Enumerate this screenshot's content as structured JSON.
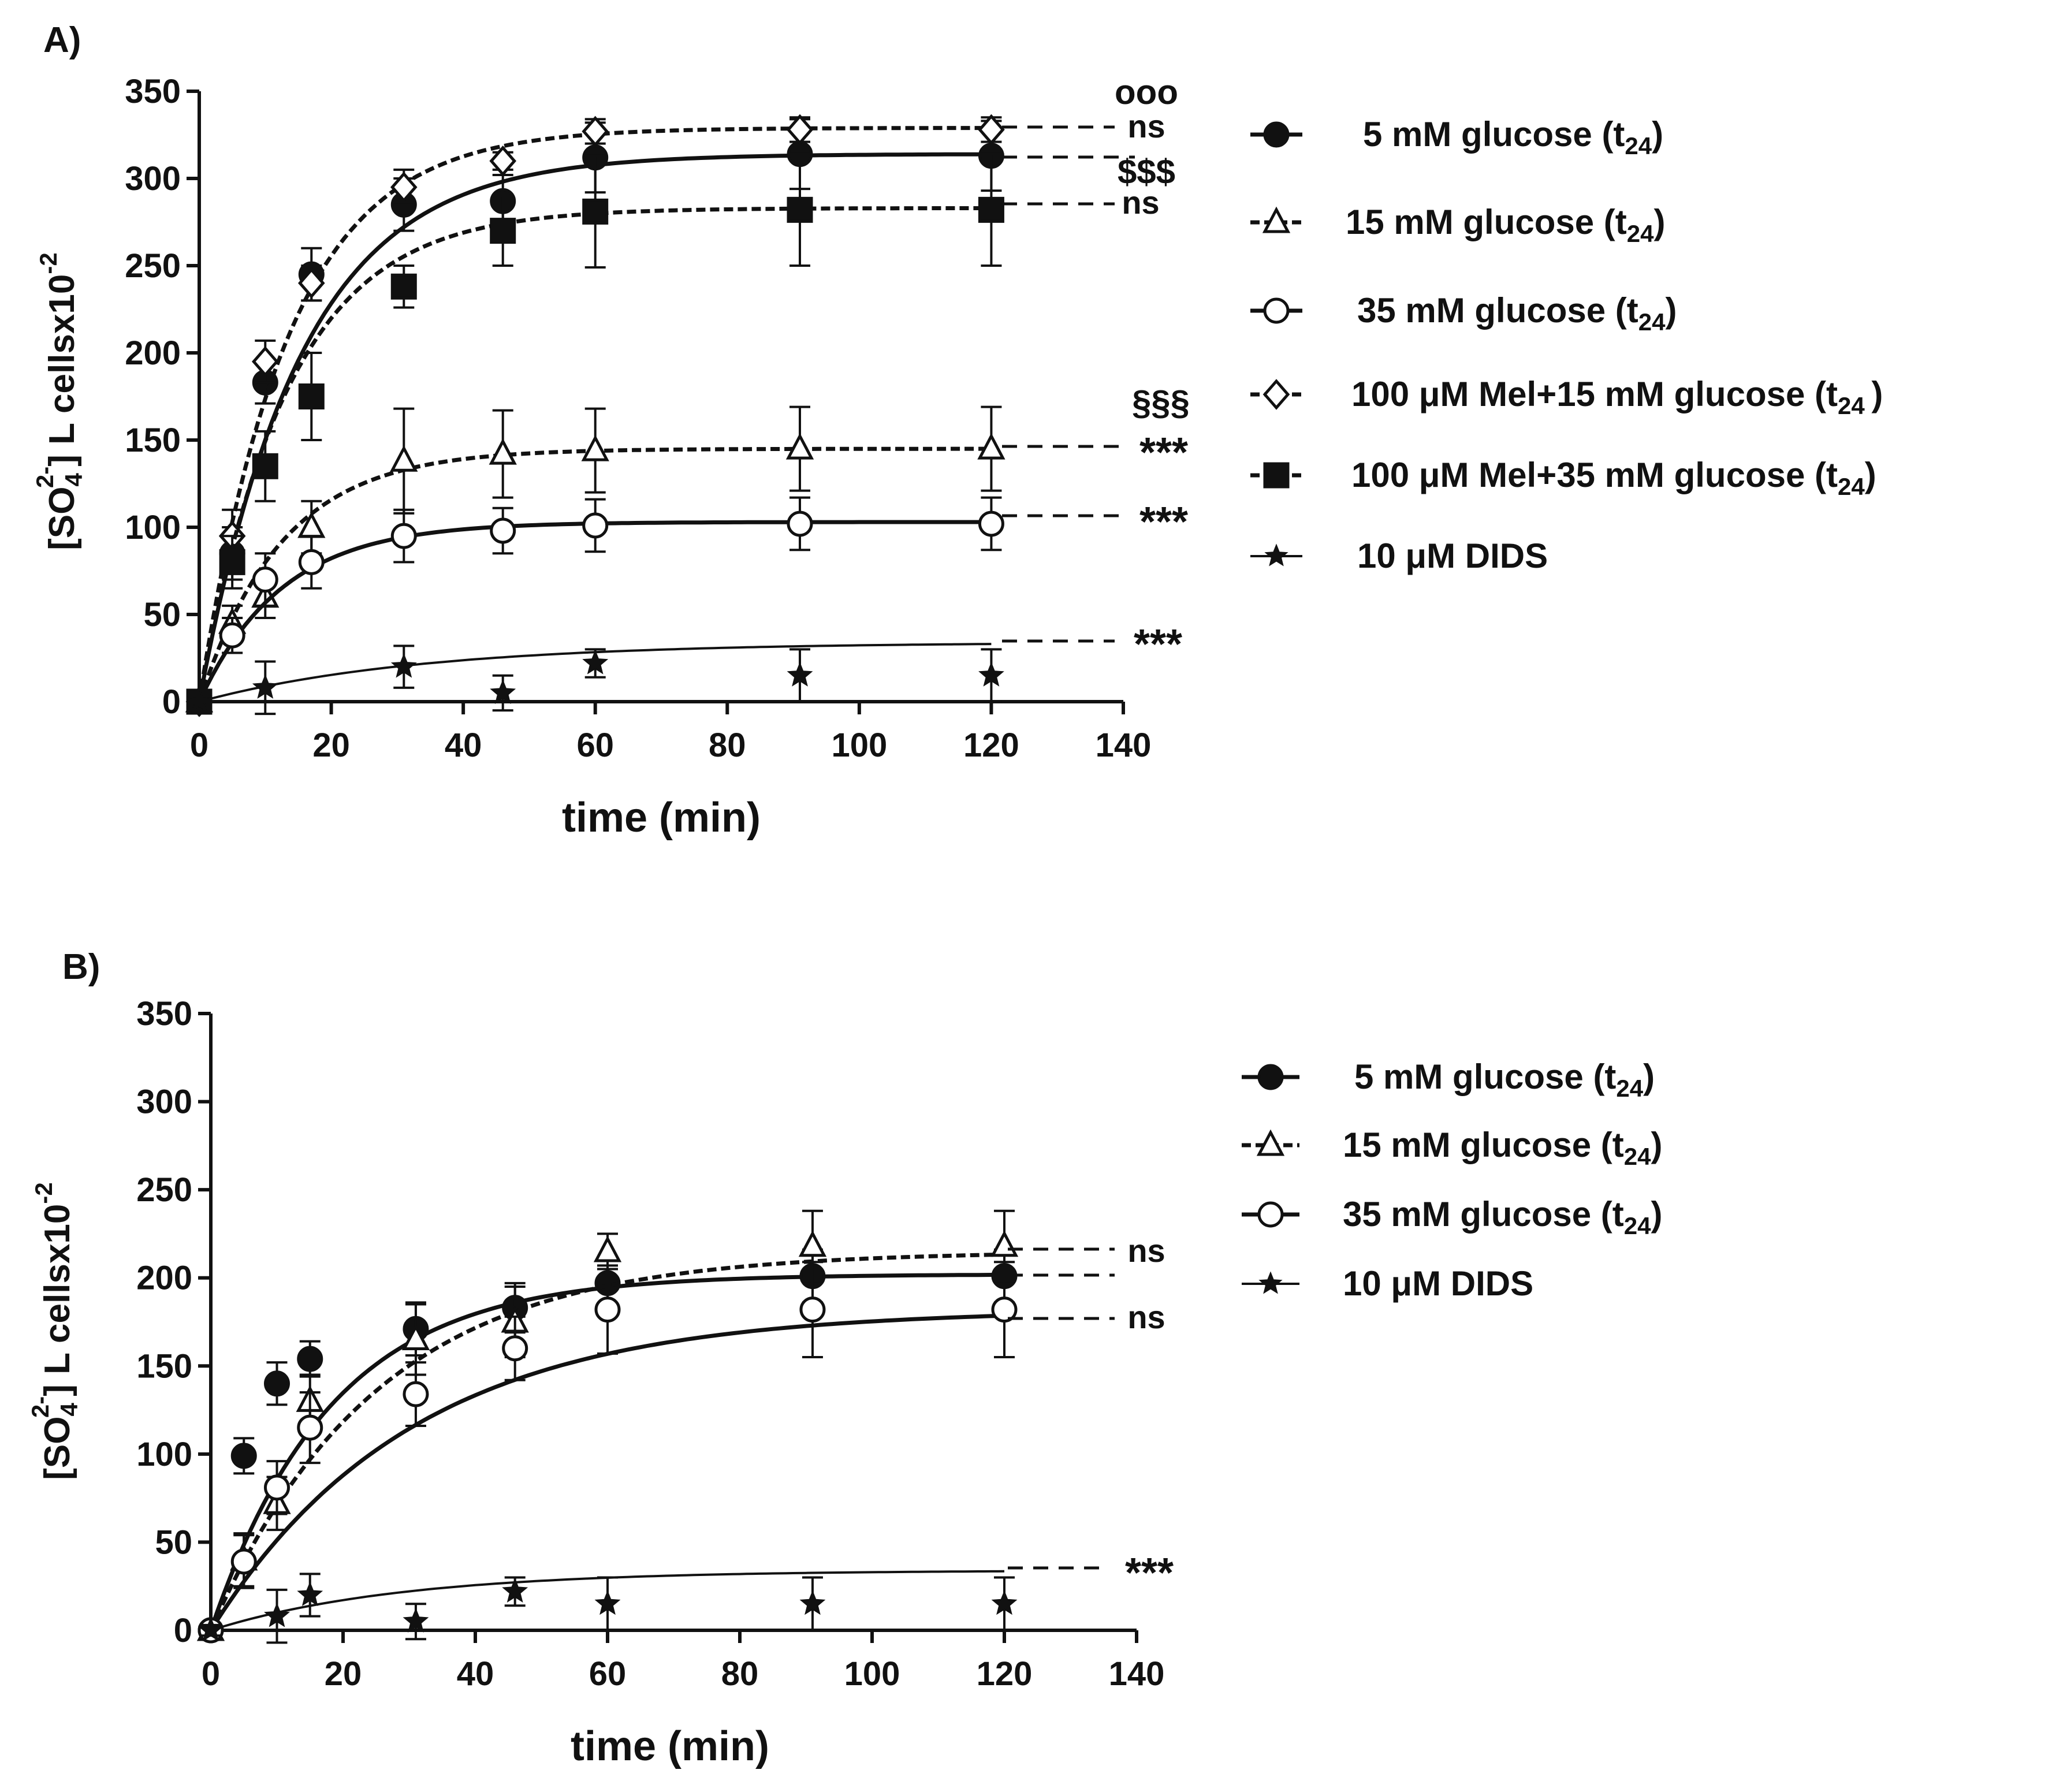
{
  "chart_data": [
    {
      "panel": "A)",
      "type": "scatter",
      "xlabel": "time (min)",
      "ylabel": {
        "open": "[SO",
        "sub": "4",
        "sup": "2-",
        "rest": "] L cellsx10",
        "exp": "-2"
      },
      "xlim": [
        0,
        140
      ],
      "ylim": [
        0,
        350
      ],
      "xticks": [
        "0",
        "20",
        "40",
        "60",
        "80",
        "100",
        "120",
        "140"
      ],
      "yticks": [
        "0",
        "50",
        "100",
        "150",
        "200",
        "250",
        "300",
        "350"
      ],
      "legend": [
        {
          "text": "5 mM glucose (t",
          "sub": "24",
          "suffix": ")"
        },
        {
          "text": "15 mM glucose (t",
          "sub": "24",
          "suffix": ")"
        },
        {
          "text": "35 mM glucose (t",
          "sub": "24",
          "suffix": ")"
        },
        {
          "text": "100 μM Mel+15 mM glucose (t",
          "sub": "24 ",
          "suffix": ")"
        },
        {
          "text": "100 μM Mel+35 mM glucose (t",
          "sub": "24",
          "suffix": ")"
        },
        {
          "text": "10 μM DIDS",
          "sub": "",
          "suffix": ""
        }
      ],
      "series": [
        {
          "name": "5 mM glucose (t24)",
          "marker": "filled-circle",
          "dash": false,
          "x": [
            0,
            5,
            10,
            17,
            31,
            46,
            60,
            91,
            120
          ],
          "y": [
            0,
            85,
            183,
            245,
            285,
            287,
            312,
            314,
            313
          ],
          "err": [
            3,
            15,
            12,
            15,
            15,
            15,
            20,
            20,
            20
          ],
          "fit": {
            "plateau": 314,
            "k": 0.065
          }
        },
        {
          "name": "15 mM glucose (t24)",
          "marker": "open-triangle",
          "dash": true,
          "x": [
            0,
            5,
            10,
            17,
            31,
            46,
            60,
            91,
            120
          ],
          "y": [
            0,
            45,
            60,
            100,
            138,
            142,
            144,
            145,
            145
          ],
          "err": [
            3,
            10,
            12,
            15,
            30,
            25,
            24,
            24,
            24
          ],
          "fit": {
            "plateau": 145,
            "k": 0.08
          }
        },
        {
          "name": "35 mM glucose (t24)",
          "marker": "open-circle",
          "dash": false,
          "x": [
            0,
            5,
            10,
            17,
            31,
            46,
            60,
            91,
            120
          ],
          "y": [
            0,
            38,
            70,
            80,
            95,
            98,
            101,
            102,
            102
          ],
          "err": [
            3,
            10,
            15,
            15,
            15,
            13,
            15,
            15,
            15
          ],
          "fit": {
            "plateau": 103,
            "k": 0.08
          }
        },
        {
          "name": "100 μM Mel+15 mM glucose (t24)",
          "marker": "open-diamond",
          "dash": true,
          "x": [
            0,
            5,
            10,
            17,
            31,
            46,
            60,
            91,
            120
          ],
          "y": [
            0,
            95,
            195,
            240,
            295,
            310,
            327,
            328,
            328
          ],
          "err": [
            3,
            15,
            12,
            10,
            10,
            5,
            7,
            7,
            7
          ],
          "fit": {
            "plateau": 329,
            "k": 0.075
          }
        },
        {
          "name": "100 μM Mel+35 mM glucose (t24)",
          "marker": "filled-square",
          "dash": true,
          "x": [
            0,
            5,
            10,
            17,
            31,
            46,
            60,
            91,
            120
          ],
          "y": [
            0,
            80,
            135,
            175,
            238,
            270,
            281,
            282,
            282
          ],
          "err": [
            3,
            15,
            20,
            25,
            12,
            20,
            32,
            32,
            32
          ],
          "fit": {
            "plateau": 283,
            "k": 0.075
          }
        },
        {
          "name": "10 μM DIDS",
          "marker": "star",
          "dash": false,
          "x": [
            0,
            10,
            31,
            46,
            60,
            91,
            120
          ],
          "y": [
            0,
            8,
            20,
            5,
            22,
            15,
            15
          ],
          "err": [
            3,
            15,
            12,
            10,
            8,
            15,
            15
          ],
          "fit": {
            "plateau": 34,
            "k": 0.03
          }
        }
      ],
      "annotations": [
        "ooo",
        "ns",
        "$$$",
        "ns",
        "§§§",
        "***",
        "***",
        "***"
      ]
    },
    {
      "panel": "B)",
      "type": "scatter",
      "xlabel": "time (min)",
      "ylabel": {
        "open": "[SO",
        "sub": "4",
        "sup": "2-",
        "rest": "] L cellsx10",
        "exp": "-2"
      },
      "xlim": [
        0,
        140
      ],
      "ylim": [
        0,
        350
      ],
      "xticks": [
        "0",
        "20",
        "40",
        "60",
        "80",
        "100",
        "120",
        "140"
      ],
      "yticks": [
        "0",
        "50",
        "100",
        "150",
        "200",
        "250",
        "300",
        "350"
      ],
      "legend": [
        {
          "text": "5 mM glucose (t",
          "sub": "24",
          "suffix": ")"
        },
        {
          "text": "15 mM glucose (t",
          "sub": "24",
          "suffix": ")"
        },
        {
          "text": "35 mM glucose (t",
          "sub": "24",
          "suffix": ")"
        },
        {
          "text": "10 μM DIDS",
          "sub": "",
          "suffix": ""
        }
      ],
      "series": [
        {
          "name": "5 mM glucose (t24)",
          "marker": "filled-circle",
          "dash": false,
          "x": [
            0,
            5,
            10,
            15,
            31,
            46,
            60,
            91,
            120
          ],
          "y": [
            0,
            99,
            140,
            154,
            171,
            183,
            197,
            201,
            201
          ],
          "err": [
            3,
            10,
            12,
            10,
            15,
            14,
            15,
            15,
            15
          ],
          "fit": {
            "plateau": 202,
            "k": 0.055
          }
        },
        {
          "name": "15 mM glucose (t24)",
          "marker": "open-triangle",
          "dash": true,
          "x": [
            0,
            5,
            10,
            15,
            31,
            46,
            60,
            91,
            120
          ],
          "y": [
            0,
            40,
            72,
            130,
            165,
            175,
            215,
            218,
            218
          ],
          "err": [
            3,
            15,
            15,
            15,
            20,
            20,
            10,
            20,
            20
          ],
          "fit": {
            "plateau": 215,
            "k": 0.04
          }
        },
        {
          "name": "35 mM glucose (t24)",
          "marker": "open-circle",
          "dash": false,
          "x": [
            0,
            5,
            10,
            15,
            31,
            46,
            60,
            91,
            120
          ],
          "y": [
            0,
            39,
            81,
            115,
            134,
            160,
            182,
            182,
            182
          ],
          "err": [
            3,
            15,
            15,
            20,
            18,
            18,
            25,
            27,
            27
          ],
          "fit": {
            "plateau": 182,
            "k": 0.033
          }
        },
        {
          "name": "10 μM DIDS",
          "marker": "star",
          "dash": false,
          "x": [
            0,
            10,
            15,
            31,
            46,
            60,
            91,
            120
          ],
          "y": [
            0,
            8,
            20,
            5,
            22,
            15,
            15,
            15
          ],
          "err": [
            3,
            15,
            12,
            10,
            8,
            15,
            15,
            15
          ],
          "fit": {
            "plateau": 34,
            "k": 0.035
          }
        }
      ],
      "annotations": [
        "ns",
        "ns",
        "***"
      ]
    }
  ]
}
